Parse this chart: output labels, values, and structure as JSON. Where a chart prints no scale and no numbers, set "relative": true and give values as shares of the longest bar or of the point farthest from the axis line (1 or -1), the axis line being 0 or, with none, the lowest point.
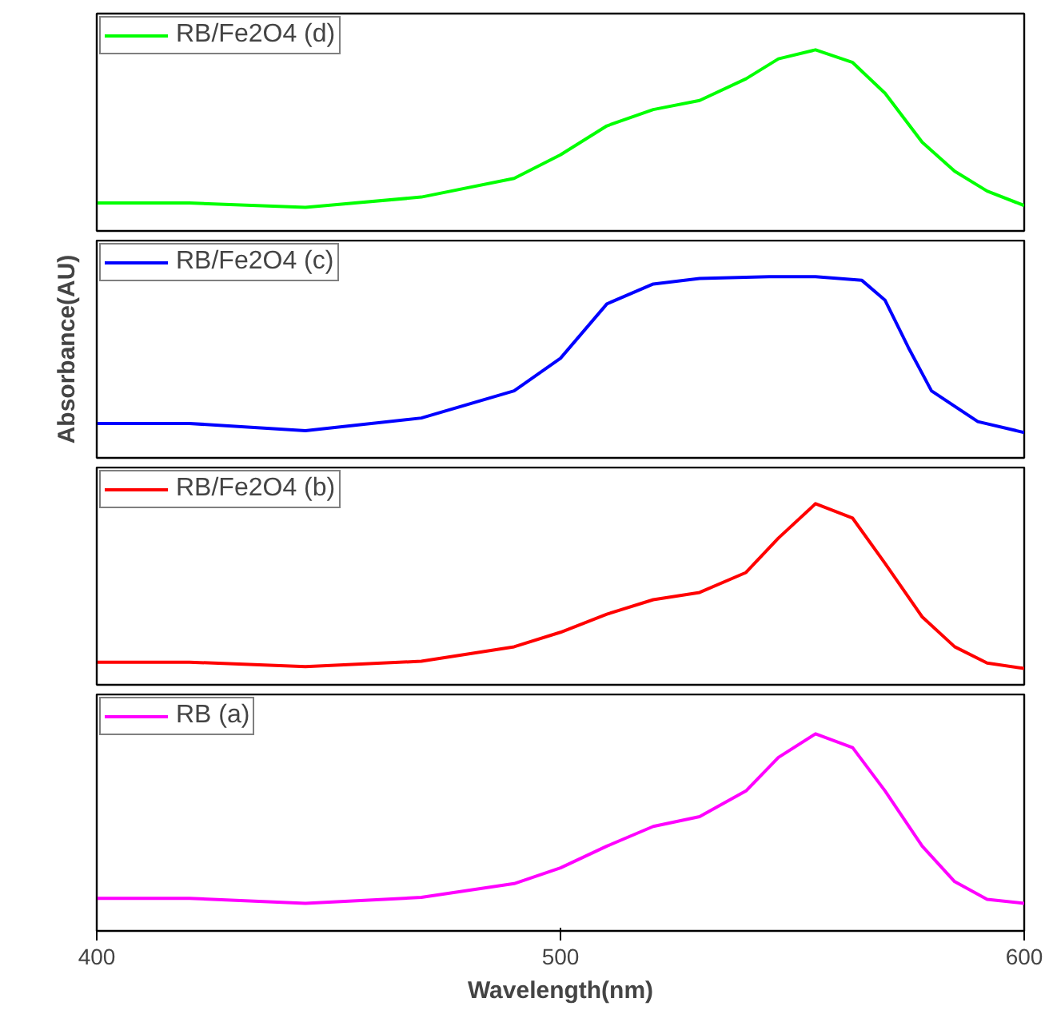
{
  "chart_data": [
    {
      "type": "line",
      "relative": true,
      "x": [
        400,
        420,
        445,
        470,
        490,
        500,
        510,
        520,
        530,
        540,
        547,
        555,
        563,
        570,
        578,
        585,
        592,
        600
      ],
      "xlim": [
        400,
        600
      ],
      "xticks": [
        400,
        500,
        600
      ],
      "tick_labels": false,
      "legend": "top left",
      "series": [
        {
          "name": "RB/Fe2O4 (d)",
          "color": "#00ff00",
          "values": [
            0.154,
            0.154,
            0.13,
            0.187,
            0.29,
            0.42,
            0.58,
            0.67,
            0.72,
            0.84,
            0.95,
            1,
            0.93,
            0.76,
            0.49,
            0.33,
            0.22,
            0.14
          ]
        }
      ]
    },
    {
      "type": "line",
      "relative": true,
      "x": [
        400,
        420,
        445,
        470,
        490,
        500,
        510,
        520,
        530,
        545,
        555,
        565,
        570,
        575,
        580,
        590,
        600
      ],
      "xlim": [
        400,
        600
      ],
      "xticks": [
        400,
        500,
        600
      ],
      "tick_labels": false,
      "legend": "top left",
      "ylabel": "Absorbance(AU)",
      "series": [
        {
          "name": "RB/Fe2O4 (c)",
          "color": "#0000ff",
          "values": [
            0.19,
            0.19,
            0.15,
            0.22,
            0.37,
            0.55,
            0.85,
            0.96,
            0.99,
            1,
            1,
            0.98,
            0.87,
            0.61,
            0.37,
            0.2,
            0.14
          ]
        }
      ]
    },
    {
      "type": "line",
      "relative": true,
      "x": [
        400,
        420,
        445,
        470,
        490,
        500,
        510,
        520,
        530,
        540,
        547,
        555,
        563,
        570,
        578,
        585,
        592,
        600
      ],
      "xlim": [
        400,
        600
      ],
      "xticks": [
        400,
        500,
        600
      ],
      "tick_labels": false,
      "legend": "top left",
      "series": [
        {
          "name": "RB/Fe2O4 (b)",
          "color": "#ff0000",
          "values": [
            0.125,
            0.125,
            0.1,
            0.13,
            0.21,
            0.29,
            0.39,
            0.47,
            0.51,
            0.62,
            0.81,
            1,
            0.92,
            0.67,
            0.375,
            0.21,
            0.12,
            0.09
          ]
        }
      ]
    },
    {
      "type": "line",
      "relative": true,
      "x": [
        400,
        420,
        445,
        470,
        490,
        500,
        510,
        520,
        530,
        540,
        547,
        555,
        563,
        570,
        578,
        585,
        592,
        600
      ],
      "xlim": [
        400,
        600
      ],
      "xticks": [
        400,
        500,
        600
      ],
      "tick_labels": "x",
      "legend": "top left",
      "xlabel": "Wavelength(nm)",
      "series": [
        {
          "name": "RB (a)",
          "color": "#ff00ff",
          "values": [
            0.165,
            0.165,
            0.14,
            0.17,
            0.24,
            0.32,
            0.43,
            0.53,
            0.58,
            0.71,
            0.88,
            1,
            0.93,
            0.71,
            0.43,
            0.25,
            0.16,
            0.14
          ]
        }
      ]
    }
  ]
}
